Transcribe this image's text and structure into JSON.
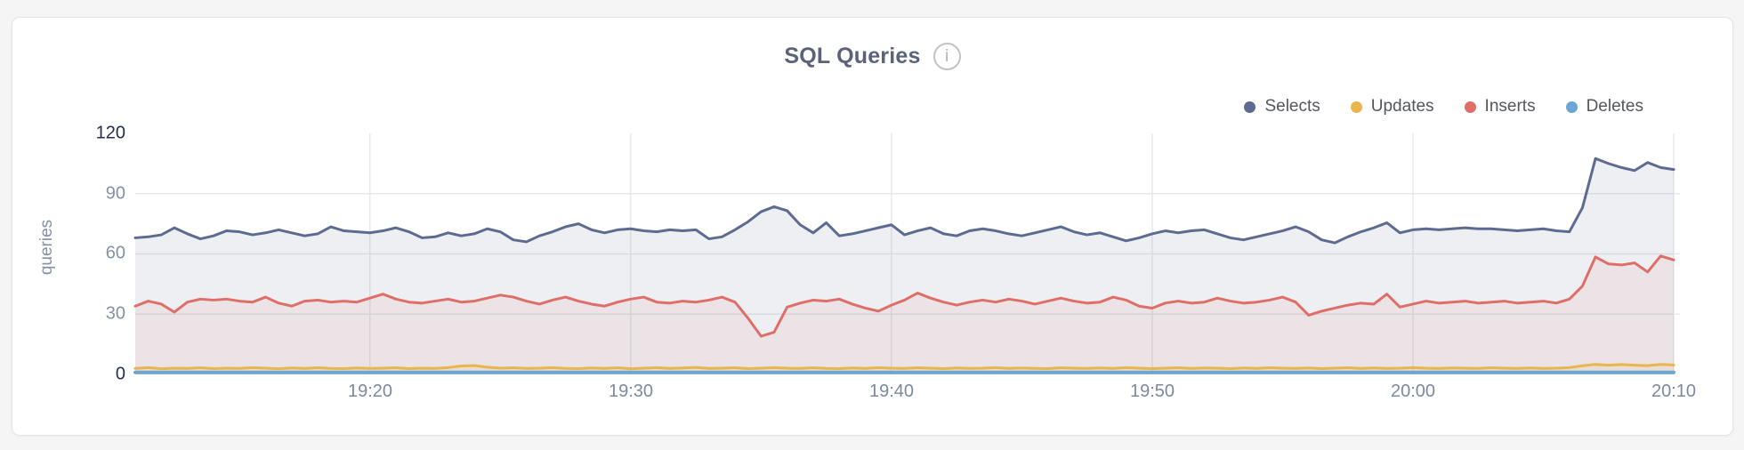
{
  "card": {
    "info_icon_glyph": "i"
  },
  "chart_data": {
    "type": "area",
    "title": "SQL Queries",
    "ylabel": "queries",
    "xlabel": "",
    "ylim": [
      0,
      120
    ],
    "grid": true,
    "legend_position": "top-right",
    "y_tick_labels": [
      "120",
      "90",
      "60",
      "30",
      "0"
    ],
    "x_tick_labels": [
      "19:20",
      "19:30",
      "19:40",
      "19:50",
      "20:00",
      "20:10"
    ],
    "x_tick_indices": [
      18,
      38,
      58,
      78,
      98,
      118
    ],
    "x_start": "19:11",
    "x_end": "20:10",
    "interval_seconds": 30,
    "gridline_color": "#e8e9ec",
    "series": [
      {
        "name": "Selects",
        "color": "#5d6b90",
        "fill_opacity": 0.11,
        "stroke_width": 3,
        "values": [
          68,
          68.5,
          69.5,
          73,
          70,
          67.5,
          69,
          71.5,
          71,
          69.5,
          70.5,
          72,
          70.5,
          69,
          70,
          73.5,
          71.5,
          71,
          70.5,
          71.5,
          73,
          71,
          68,
          68.5,
          70.5,
          69,
          70,
          72.5,
          71,
          67,
          66,
          69,
          71,
          73.5,
          75,
          72,
          70.5,
          72,
          72.5,
          71.5,
          71,
          72,
          71.5,
          72,
          67.5,
          68.5,
          72,
          76,
          81,
          83.5,
          81.5,
          74.5,
          70.5,
          75.5,
          69,
          70,
          71.5,
          73,
          74.5,
          69.5,
          71.5,
          73,
          70,
          69,
          71.5,
          72.5,
          71.5,
          70,
          69,
          70.5,
          72,
          73.5,
          71,
          69.5,
          70.5,
          68.5,
          66.5,
          68,
          70,
          71.5,
          70.5,
          71.5,
          72,
          70,
          68,
          67,
          68.5,
          70,
          71.5,
          73.5,
          71,
          67,
          65.5,
          68.5,
          71,
          73,
          75.5,
          70.5,
          72,
          72.5,
          72,
          72.5,
          73,
          72.5,
          72.5,
          72,
          71.5,
          72,
          72.5,
          71.5,
          71,
          83,
          107.5,
          105,
          103,
          101.5,
          105.5,
          103,
          102
        ]
      },
      {
        "name": "Updates",
        "color": "#eab54d",
        "fill_opacity": 0.12,
        "stroke_width": 3,
        "values": [
          3,
          3.4,
          2.8,
          3.1,
          3,
          3.3,
          2.9,
          3.1,
          3,
          3.4,
          3.1,
          2.8,
          3.2,
          3,
          3.3,
          3,
          2.9,
          3.2,
          3,
          3.1,
          3.3,
          2.9,
          3.1,
          3,
          3.4,
          4.2,
          4.4,
          3.6,
          3.1,
          3.3,
          3,
          3.1,
          3.4,
          3,
          2.9,
          3.2,
          3,
          3.3,
          2.8,
          3.1,
          3.4,
          3,
          3.2,
          3.5,
          3,
          3.1,
          3.3,
          2.9,
          3.1,
          3.4,
          3.1,
          3,
          3.3,
          3,
          2.9,
          3.2,
          3,
          3.4,
          3.1,
          3,
          3.3,
          3.1,
          2.9,
          3.2,
          3,
          3.1,
          3.4,
          3,
          3.2,
          3,
          2.9,
          3.3,
          3.1,
          3,
          3.2,
          3,
          3.4,
          3.1,
          2.9,
          3.1,
          3.3,
          3,
          3.2,
          3.1,
          2.9,
          3.2,
          3,
          3.3,
          3.1,
          3,
          3.2,
          2.9,
          3.1,
          3.3,
          3,
          3.2,
          3,
          3.1,
          3.4,
          3.1,
          3,
          3.2,
          3.1,
          3,
          3.3,
          3.1,
          3,
          3.2,
          3,
          3.1,
          3.4,
          4.3,
          5,
          4.6,
          4.9,
          4.6,
          4.4,
          5,
          4.7
        ]
      },
      {
        "name": "Inserts",
        "color": "#df6e68",
        "fill_opacity": 0.09,
        "stroke_width": 3,
        "values": [
          34,
          36.5,
          35,
          31,
          36,
          37.5,
          37,
          37.5,
          36.5,
          36,
          38.5,
          35.5,
          34,
          36.5,
          37,
          36,
          36.5,
          36,
          38,
          40,
          37.5,
          36,
          35.5,
          36.5,
          37.5,
          36,
          36.5,
          38,
          39.5,
          38.5,
          36.5,
          35,
          37,
          38.5,
          36.5,
          35,
          34,
          36,
          37.5,
          38.5,
          36,
          35.5,
          36.5,
          36,
          37,
          38.5,
          36,
          28,
          19,
          21,
          33.5,
          35.5,
          37,
          36.5,
          37.5,
          35,
          33,
          31.5,
          34.5,
          37,
          40.5,
          38,
          36,
          34.5,
          36,
          37,
          36,
          37.5,
          36.5,
          35,
          36.5,
          38,
          36.5,
          35.5,
          36,
          38.5,
          37,
          34,
          33,
          35.5,
          36.5,
          35.5,
          36,
          38,
          36.5,
          35.5,
          36,
          37,
          38.5,
          36,
          29.5,
          31.5,
          33,
          34.5,
          35.5,
          35,
          40,
          33.5,
          35,
          36.5,
          35.5,
          36,
          36.5,
          35.5,
          36,
          36.5,
          35.5,
          36,
          36.5,
          35.5,
          37.5,
          44,
          58.5,
          55,
          54.5,
          55.5,
          51,
          59,
          57
        ]
      },
      {
        "name": "Deletes",
        "color": "#6aa7d5",
        "fill_opacity": 0.15,
        "stroke_width": 4,
        "values": [
          1,
          1,
          1,
          1,
          1,
          1,
          1,
          1,
          1,
          1,
          1,
          1,
          1,
          1,
          1,
          1,
          1,
          1,
          1,
          1,
          1,
          1,
          1,
          1,
          1,
          1,
          1,
          1,
          1,
          1,
          1,
          1,
          1,
          1,
          1,
          1,
          1,
          1,
          1,
          1,
          1,
          1,
          1,
          1,
          1,
          1,
          1,
          1,
          1,
          1,
          1,
          1,
          1,
          1,
          1,
          1,
          1,
          1,
          1,
          1,
          1,
          1,
          1,
          1,
          1,
          1,
          1,
          1,
          1,
          1,
          1,
          1,
          1,
          1,
          1,
          1,
          1,
          1,
          1,
          1,
          1,
          1,
          1,
          1,
          1,
          1,
          1,
          1,
          1,
          1,
          1,
          1,
          1,
          1,
          1,
          1,
          1,
          1,
          1,
          1,
          1,
          1,
          1,
          1,
          1,
          1,
          1,
          1,
          1,
          1,
          1,
          1,
          1,
          1,
          1,
          1,
          1,
          1,
          1
        ]
      }
    ]
  }
}
